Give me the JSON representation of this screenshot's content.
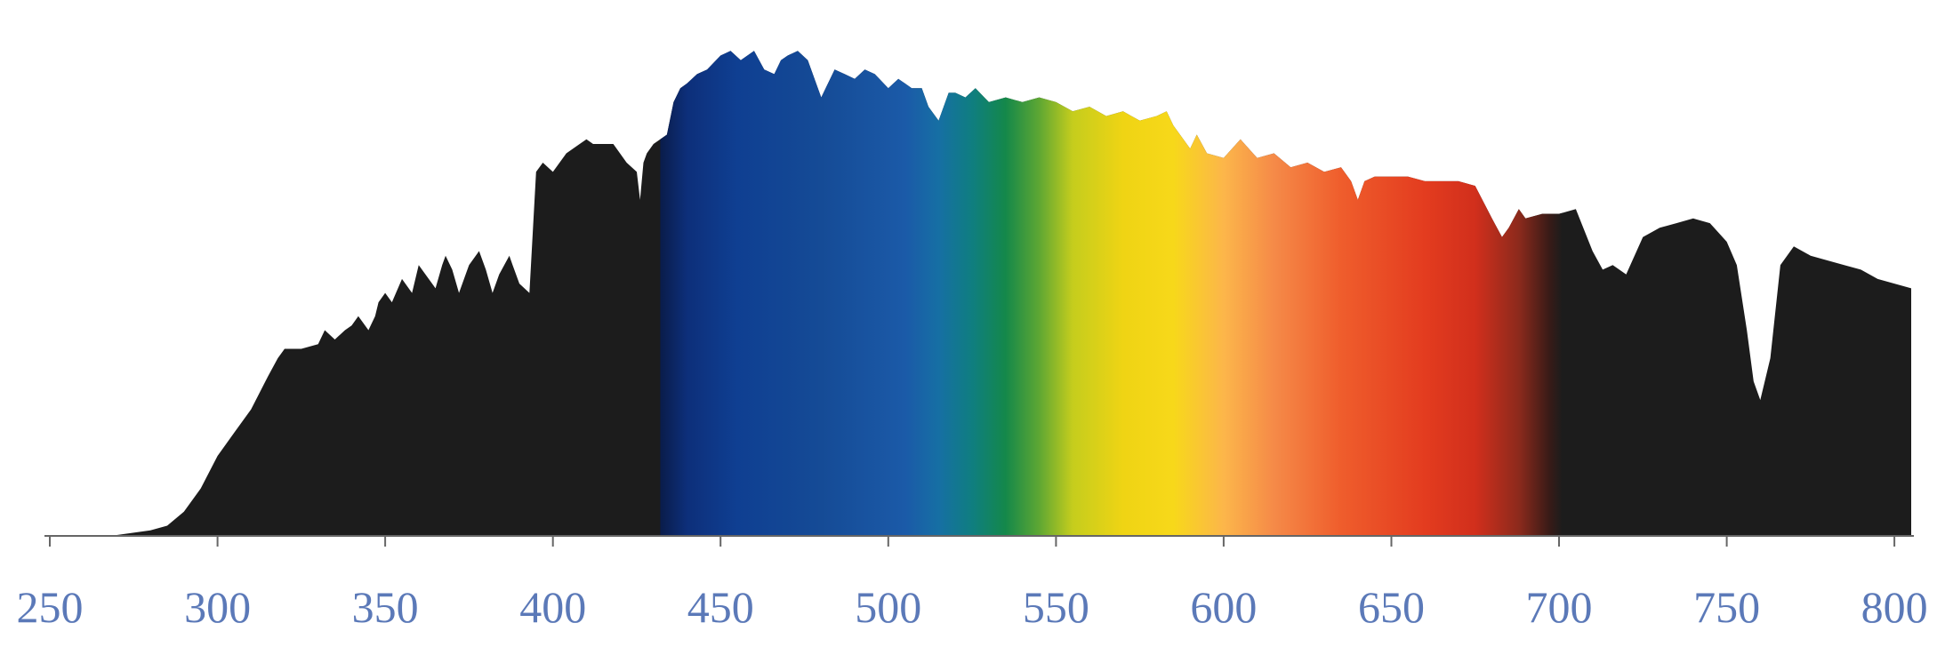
{
  "chart_data": {
    "type": "area",
    "title": "",
    "xlabel": "",
    "ylabel": "",
    "xlim": [
      250,
      805
    ],
    "ylim": [
      0,
      1
    ],
    "grid": false,
    "legend": "none",
    "ticks": [
      250,
      300,
      350,
      400,
      450,
      500,
      550,
      600,
      650,
      700,
      750,
      800
    ],
    "tick_labels": [
      "250",
      "300",
      "350",
      "400",
      "450",
      "500",
      "550",
      "600",
      "650",
      "700",
      "750",
      "800"
    ],
    "visible_band": [
      432,
      701
    ],
    "series": [
      {
        "x": [
          250,
          270,
          280,
          285,
          290,
          295,
          300,
          305,
          310,
          315,
          318,
          320,
          325,
          330,
          332,
          335,
          338,
          340,
          342,
          345,
          347,
          348,
          350,
          352,
          355,
          358,
          360,
          363,
          365,
          367,
          368,
          370,
          372,
          374,
          375,
          378,
          380,
          382,
          384,
          387,
          388,
          390,
          393,
          395,
          397,
          400,
          404,
          408,
          410,
          412,
          418,
          422,
          425,
          426,
          427,
          428,
          430,
          434,
          436,
          438,
          440,
          443,
          446,
          450,
          453,
          456,
          460,
          463,
          466,
          468,
          470,
          473,
          476,
          480,
          484,
          487,
          490,
          493,
          496,
          500,
          503,
          507,
          510,
          512,
          515,
          518,
          520,
          523,
          526,
          530,
          535,
          540,
          545,
          550,
          555,
          560,
          565,
          570,
          575,
          580,
          583,
          585,
          590,
          592,
          595,
          600,
          605,
          610,
          615,
          620,
          625,
          630,
          635,
          638,
          640,
          642,
          645,
          650,
          655,
          660,
          665,
          670,
          675,
          680,
          683,
          685,
          688,
          690,
          695,
          700,
          705,
          710,
          713,
          716,
          720,
          725,
          730,
          735,
          740,
          745,
          750,
          753,
          756,
          758,
          760,
          763,
          766,
          770,
          775,
          780,
          785,
          790,
          795,
          800,
          805
        ],
        "values": [
          0.0,
          0.0,
          0.01,
          0.02,
          0.05,
          0.1,
          0.17,
          0.22,
          0.27,
          0.34,
          0.38,
          0.4,
          0.4,
          0.41,
          0.44,
          0.42,
          0.44,
          0.45,
          0.47,
          0.44,
          0.47,
          0.5,
          0.52,
          0.5,
          0.55,
          0.52,
          0.58,
          0.55,
          0.53,
          0.58,
          0.6,
          0.57,
          0.52,
          0.56,
          0.58,
          0.61,
          0.57,
          0.52,
          0.56,
          0.6,
          0.58,
          0.54,
          0.52,
          0.78,
          0.8,
          0.78,
          0.82,
          0.84,
          0.85,
          0.84,
          0.84,
          0.8,
          0.78,
          0.72,
          0.8,
          0.82,
          0.84,
          0.86,
          0.93,
          0.96,
          0.97,
          0.99,
          1.0,
          1.03,
          1.04,
          1.02,
          1.04,
          1.0,
          0.99,
          1.02,
          1.03,
          1.04,
          1.02,
          0.94,
          1.0,
          0.99,
          0.98,
          1.0,
          0.99,
          0.96,
          0.98,
          0.96,
          0.96,
          0.92,
          0.89,
          0.95,
          0.95,
          0.94,
          0.96,
          0.93,
          0.94,
          0.93,
          0.94,
          0.93,
          0.91,
          0.92,
          0.9,
          0.91,
          0.89,
          0.9,
          0.91,
          0.88,
          0.83,
          0.86,
          0.82,
          0.81,
          0.85,
          0.81,
          0.82,
          0.79,
          0.8,
          0.78,
          0.79,
          0.76,
          0.72,
          0.76,
          0.77,
          0.77,
          0.77,
          0.76,
          0.76,
          0.76,
          0.75,
          0.68,
          0.64,
          0.66,
          0.7,
          0.68,
          0.69,
          0.69,
          0.7,
          0.61,
          0.57,
          0.58,
          0.56,
          0.64,
          0.66,
          0.67,
          0.68,
          0.67,
          0.63,
          0.58,
          0.44,
          0.33,
          0.29,
          0.38,
          0.58,
          0.62,
          0.6,
          0.59,
          0.58,
          0.57,
          0.55,
          0.54,
          0.53
        ]
      }
    ],
    "spectrum_colors": [
      {
        "nm": 432,
        "color": "#0a1c4a"
      },
      {
        "nm": 440,
        "color": "#0d2f7a"
      },
      {
        "nm": 455,
        "color": "#0f3f92"
      },
      {
        "nm": 480,
        "color": "#154b96"
      },
      {
        "nm": 505,
        "color": "#1b5aa8"
      },
      {
        "nm": 515,
        "color": "#166fa4"
      },
      {
        "nm": 525,
        "color": "#0f7e80"
      },
      {
        "nm": 535,
        "color": "#14884a"
      },
      {
        "nm": 545,
        "color": "#5ea733"
      },
      {
        "nm": 555,
        "color": "#c5cd1d"
      },
      {
        "nm": 570,
        "color": "#efd414"
      },
      {
        "nm": 585,
        "color": "#f7d81a"
      },
      {
        "nm": 600,
        "color": "#fcb64a"
      },
      {
        "nm": 615,
        "color": "#f58a48"
      },
      {
        "nm": 635,
        "color": "#ef5d2c"
      },
      {
        "nm": 660,
        "color": "#e33c1f"
      },
      {
        "nm": 675,
        "color": "#d12f1c"
      },
      {
        "nm": 688,
        "color": "#8c2a1c"
      },
      {
        "nm": 697,
        "color": "#3a1b17"
      },
      {
        "nm": 701,
        "color": "#1c1c1c"
      }
    ],
    "colors": {
      "fill": "#1c1c1c",
      "axis": "#666666",
      "tick_label": "#5b79b8",
      "background": "#ffffff"
    }
  }
}
